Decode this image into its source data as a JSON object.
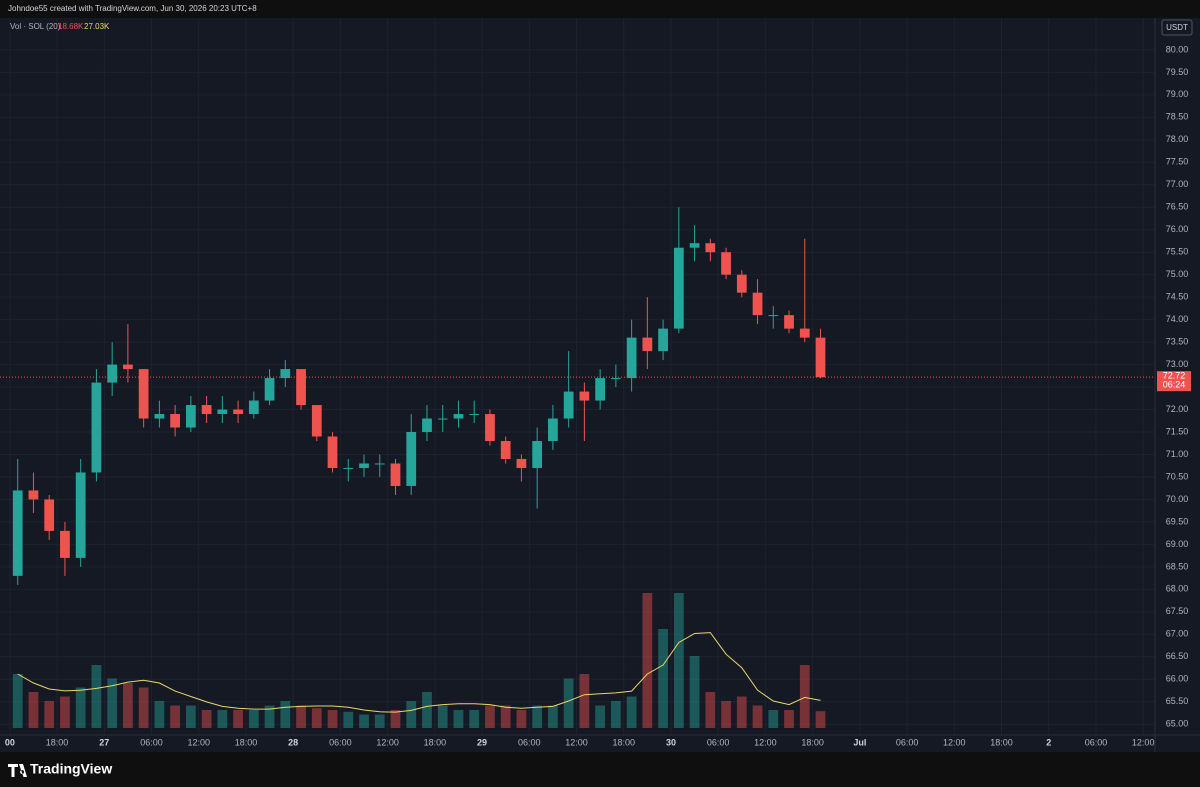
{
  "header": {
    "attribution": "Johndoe55 created with TradingView.com, Jun 30, 2026 20:23 UTC+8"
  },
  "footer": {
    "logo": "TradingView"
  },
  "chart_data": {
    "type": "candlestick",
    "currency": "USDT",
    "volume_legend": {
      "name": "Vol · SOL (20)",
      "volume": "18.68K",
      "ma": "27.03K"
    },
    "countdown": "06:24",
    "up_color": "#26a69a",
    "down_color": "#ef5350",
    "ma_color": "#e8d86a",
    "grid": true,
    "x": [
      1,
      3,
      5,
      7,
      9,
      11,
      13,
      15,
      17,
      19,
      21,
      23,
      25,
      27,
      29,
      31,
      33,
      35,
      37,
      39,
      41,
      43,
      45,
      47,
      49,
      51,
      53,
      55,
      57,
      59,
      61,
      63,
      65,
      67,
      69,
      71,
      73,
      75,
      77,
      79,
      81,
      83,
      85,
      87,
      89,
      91,
      93,
      95,
      97,
      99,
      101,
      103
    ],
    "open": [
      68.3,
      70.2,
      70.0,
      69.3,
      68.7,
      70.6,
      72.6,
      73.0,
      72.9,
      71.8,
      71.9,
      71.6,
      72.1,
      71.9,
      72.0,
      71.9,
      72.2,
      72.7,
      72.9,
      72.1,
      71.4,
      70.7,
      70.7,
      70.8,
      70.8,
      70.3,
      71.5,
      71.8,
      71.8,
      71.9,
      71.9,
      71.3,
      70.9,
      70.7,
      71.3,
      71.8,
      72.4,
      72.2,
      72.7,
      72.7,
      73.6,
      73.3,
      73.8,
      75.6,
      75.7,
      75.5,
      75.0,
      74.6,
      74.1,
      74.1,
      73.8,
      73.6
    ],
    "high": [
      70.9,
      70.6,
      70.1,
      69.5,
      70.9,
      72.9,
      73.5,
      73.9,
      72.9,
      72.2,
      72.1,
      72.3,
      72.3,
      72.3,
      72.2,
      72.4,
      72.9,
      73.1,
      72.9,
      72.1,
      71.5,
      70.9,
      71.0,
      71.0,
      70.9,
      71.9,
      72.1,
      72.1,
      72.2,
      72.2,
      72.0,
      71.4,
      71.0,
      71.6,
      72.1,
      73.3,
      72.6,
      72.9,
      73.0,
      74.0,
      74.5,
      74.0,
      76.5,
      76.1,
      75.8,
      75.6,
      75.1,
      74.9,
      74.3,
      74.2,
      75.8,
      73.8
    ],
    "low": [
      68.1,
      69.7,
      69.1,
      68.3,
      68.5,
      70.4,
      72.3,
      72.6,
      71.6,
      71.6,
      71.4,
      71.5,
      71.7,
      71.7,
      71.7,
      71.8,
      72.1,
      72.5,
      72.0,
      71.3,
      70.6,
      70.4,
      70.5,
      70.5,
      70.1,
      70.1,
      71.3,
      71.5,
      71.6,
      71.7,
      71.2,
      70.8,
      70.4,
      69.8,
      71.1,
      71.6,
      71.3,
      72.0,
      72.5,
      72.4,
      72.9,
      73.1,
      73.7,
      75.3,
      75.3,
      74.9,
      74.5,
      73.9,
      73.8,
      73.7,
      73.5,
      72.7
    ],
    "close": [
      70.2,
      70.0,
      69.3,
      68.7,
      70.6,
      72.6,
      73.0,
      72.9,
      71.8,
      71.9,
      71.6,
      72.1,
      71.9,
      72.0,
      71.9,
      72.2,
      72.7,
      72.9,
      72.1,
      71.4,
      70.7,
      70.7,
      70.8,
      70.8,
      70.3,
      71.5,
      71.8,
      71.8,
      71.9,
      71.9,
      71.3,
      70.9,
      70.7,
      71.3,
      71.8,
      72.4,
      72.2,
      72.7,
      72.7,
      73.6,
      73.3,
      73.8,
      75.6,
      75.7,
      75.5,
      75.0,
      74.6,
      74.1,
      74.1,
      73.8,
      73.6,
      72.72
    ],
    "volume": [
      60,
      40,
      30,
      35,
      45,
      70,
      55,
      50,
      45,
      30,
      25,
      25,
      20,
      20,
      20,
      20,
      25,
      30,
      25,
      22,
      20,
      18,
      15,
      15,
      20,
      30,
      40,
      25,
      20,
      20,
      25,
      25,
      20,
      25,
      25,
      55,
      60,
      25,
      30,
      35,
      150,
      110,
      150,
      80,
      40,
      30,
      35,
      25,
      20,
      20,
      70,
      18.68
    ],
    "volume_lim": [
      0,
      200
    ],
    "xlim": [
      -1.25,
      145.5
    ],
    "xticks": [
      {
        "value": 0,
        "label": "00"
      },
      {
        "value": 6,
        "label": "18:00"
      },
      {
        "value": 12,
        "label": "27"
      },
      {
        "value": 18,
        "label": "06:00"
      },
      {
        "value": 24,
        "label": "12:00"
      },
      {
        "value": 30,
        "label": "18:00"
      },
      {
        "value": 36,
        "label": "28"
      },
      {
        "value": 42,
        "label": "06:00"
      },
      {
        "value": 48,
        "label": "12:00"
      },
      {
        "value": 54,
        "label": "18:00"
      },
      {
        "value": 60,
        "label": "29"
      },
      {
        "value": 66,
        "label": "06:00"
      },
      {
        "value": 72,
        "label": "12:00"
      },
      {
        "value": 78,
        "label": "18:00"
      },
      {
        "value": 84,
        "label": "30"
      },
      {
        "value": 90,
        "label": "06:00"
      },
      {
        "value": 96,
        "label": "12:00"
      },
      {
        "value": 102,
        "label": "18:00"
      },
      {
        "value": 108,
        "label": "Jul"
      },
      {
        "value": 114,
        "label": "06:00"
      },
      {
        "value": 120,
        "label": "12:00"
      },
      {
        "value": 126,
        "label": "18:00"
      },
      {
        "value": 132,
        "label": "2"
      },
      {
        "value": 138,
        "label": "06:00"
      },
      {
        "value": 144,
        "label": "12:00"
      }
    ],
    "ylim": [
      64.76,
      80.71
    ],
    "yticks": [
      {
        "value": 65,
        "label": "65.00"
      },
      {
        "value": 65.5,
        "label": "65.50"
      },
      {
        "value": 66,
        "label": "66.00"
      },
      {
        "value": 66.5,
        "label": "66.50"
      },
      {
        "value": 67,
        "label": "67.00"
      },
      {
        "value": 67.5,
        "label": "67.50"
      },
      {
        "value": 68,
        "label": "68.00"
      },
      {
        "value": 68.5,
        "label": "68.50"
      },
      {
        "value": 69,
        "label": "69.00"
      },
      {
        "value": 69.5,
        "label": "69.50"
      },
      {
        "value": 70,
        "label": "70.00"
      },
      {
        "value": 70.5,
        "label": "70.50"
      },
      {
        "value": 71,
        "label": "71.00"
      },
      {
        "value": 71.5,
        "label": "71.50"
      },
      {
        "value": 72,
        "label": "72.00"
      },
      {
        "value": 72.5,
        "label": "72.50"
      },
      {
        "value": 73,
        "label": "73.00"
      },
      {
        "value": 73.5,
        "label": "73.50"
      },
      {
        "value": 74,
        "label": "74.00"
      },
      {
        "value": 74.5,
        "label": "74.50"
      },
      {
        "value": 75,
        "label": "75.00"
      },
      {
        "value": 75.5,
        "label": "75.50"
      },
      {
        "value": 76,
        "label": "76.00"
      },
      {
        "value": 76.5,
        "label": "76.50"
      },
      {
        "value": 77,
        "label": "77.00"
      },
      {
        "value": 77.5,
        "label": "77.50"
      },
      {
        "value": 78,
        "label": "78.00"
      },
      {
        "value": 78.5,
        "label": "78.50"
      },
      {
        "value": 79,
        "label": "79.00"
      },
      {
        "value": 79.5,
        "label": "79.50"
      },
      {
        "value": 80,
        "label": "80.00"
      }
    ]
  }
}
